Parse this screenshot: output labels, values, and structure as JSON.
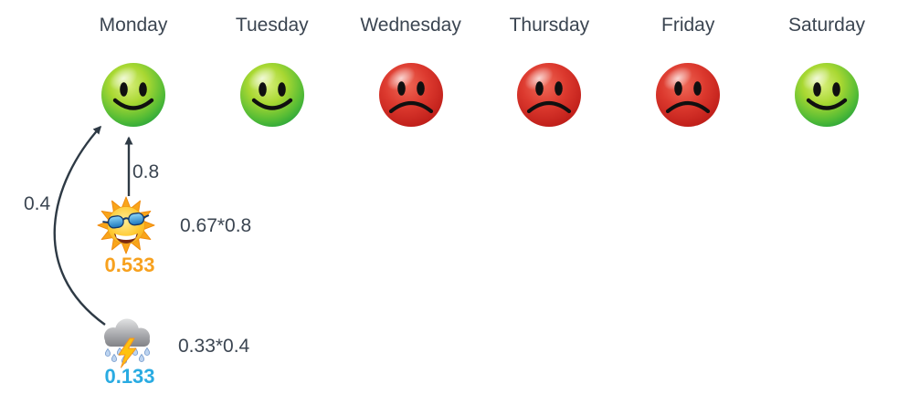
{
  "diagram": {
    "days": [
      {
        "label": "Monday",
        "mood": "happy"
      },
      {
        "label": "Tuesday",
        "mood": "happy"
      },
      {
        "label": "Wednesday",
        "mood": "sad"
      },
      {
        "label": "Thursday",
        "mood": "sad"
      },
      {
        "label": "Friday",
        "mood": "sad"
      },
      {
        "label": "Saturday",
        "mood": "happy"
      }
    ],
    "edges": {
      "sun_to_monday": {
        "label": "0.8"
      },
      "storm_to_monday": {
        "label": "0.4"
      }
    },
    "nodes": {
      "sun": {
        "icon": "sun-with-sunglasses-icon",
        "value": "0.533",
        "expression": "0.67*0.8",
        "value_color": "#F7A11E"
      },
      "storm": {
        "icon": "storm-cloud-lightning-icon",
        "value": "0.133",
        "expression": "0.33*0.4",
        "value_color": "#29ABE2"
      }
    },
    "colors": {
      "text": "#3B4551",
      "arrow": "#2E3A45",
      "happy_face_green": "#2FAE3C",
      "sad_face_red": "#D32B26",
      "background": "#FFFFFF"
    }
  }
}
